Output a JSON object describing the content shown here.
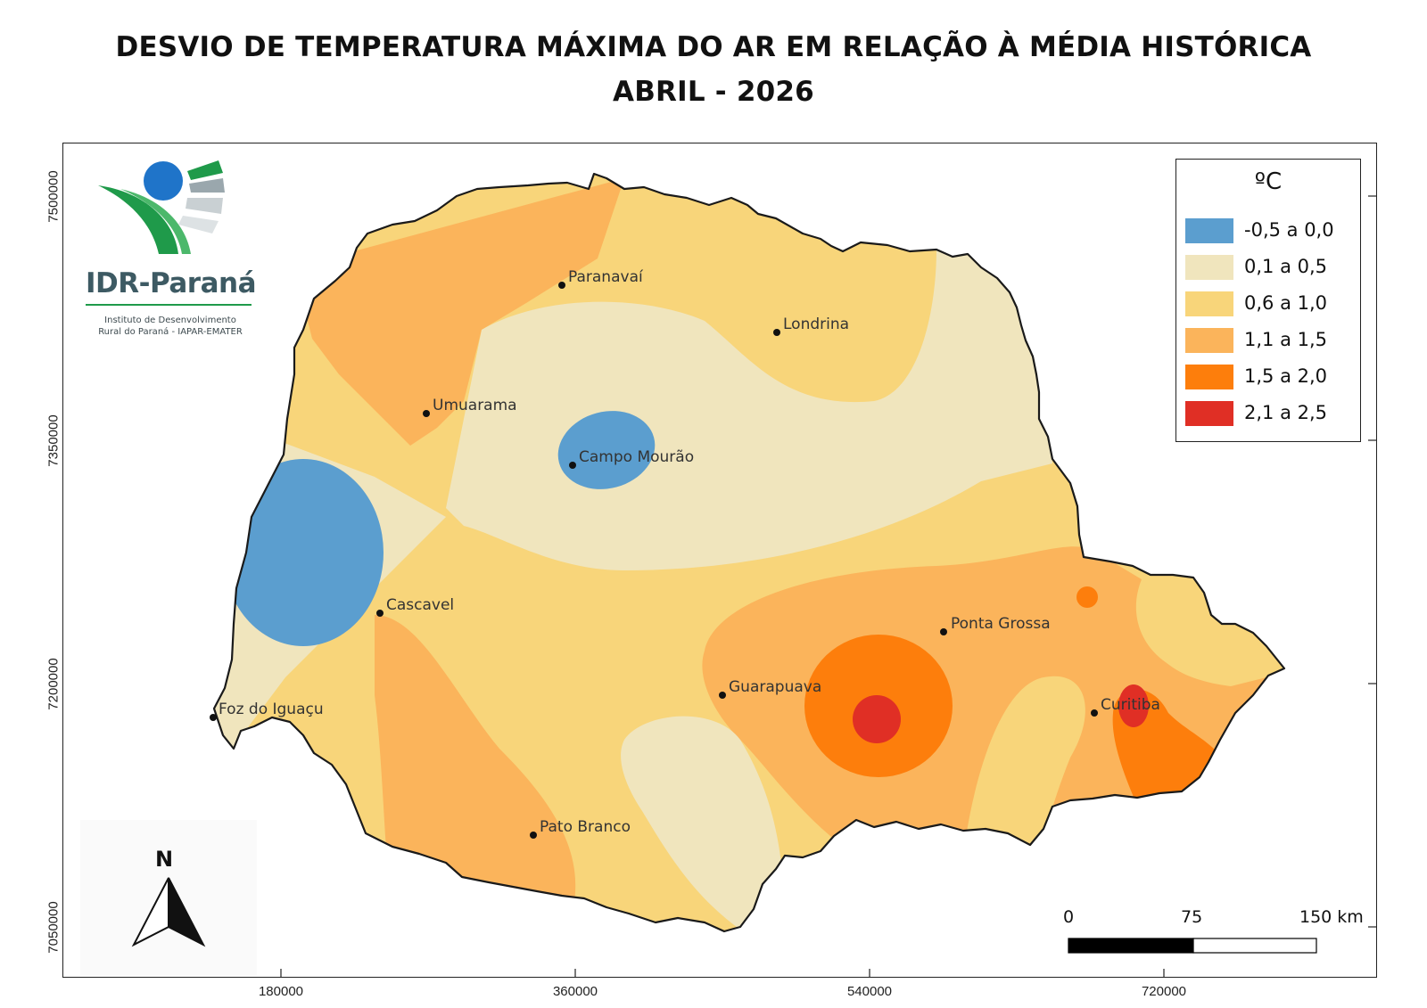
{
  "title": {
    "line1": "DESVIO DE TEMPERATURA MÁXIMA DO AR EM RELAÇÃO À MÉDIA HISTÓRICA",
    "line2": "ABRIL - 2026"
  },
  "axes": {
    "y_ticks": [
      "7500000",
      "7350000",
      "7200000",
      "7050000"
    ],
    "x_ticks": [
      "180000",
      "360000",
      "540000",
      "720000"
    ]
  },
  "logo": {
    "name": "IDR-Paraná",
    "sub1": "Instituto de Desenvolvimento",
    "sub2": "Rural do Paraná - IAPAR-EMATER",
    "colors": {
      "blue": "#1f74c9",
      "green": "#1f9a4a",
      "teal": "#3d5a63"
    }
  },
  "legend": {
    "title": "ºC",
    "items": [
      {
        "label": "-0,5 a 0,0",
        "color": "#5b9ecf"
      },
      {
        "label": "0,1 a 0,5",
        "color": "#f0e5bd"
      },
      {
        "label": "0,6 a 1,0",
        "color": "#f8d57a"
      },
      {
        "label": "1,1 a 1,5",
        "color": "#fbb45b"
      },
      {
        "label": "1,5 a 2,0",
        "color": "#fd7e0c"
      },
      {
        "label": "2,1 a 2,5",
        "color": "#e02f25"
      }
    ]
  },
  "cities": [
    {
      "name": "Paranavaí"
    },
    {
      "name": "Londrina"
    },
    {
      "name": "Umuarama"
    },
    {
      "name": "Campo Mourão"
    },
    {
      "name": "Cascavel"
    },
    {
      "name": "Ponta Grossa"
    },
    {
      "name": "Guarapuava"
    },
    {
      "name": "Curitiba"
    },
    {
      "name": "Foz do Iguaçu"
    },
    {
      "name": "Pato Branco"
    }
  ],
  "scale_bar": {
    "labels": [
      "0",
      "75",
      "150 km"
    ]
  },
  "north": {
    "label": "N"
  }
}
